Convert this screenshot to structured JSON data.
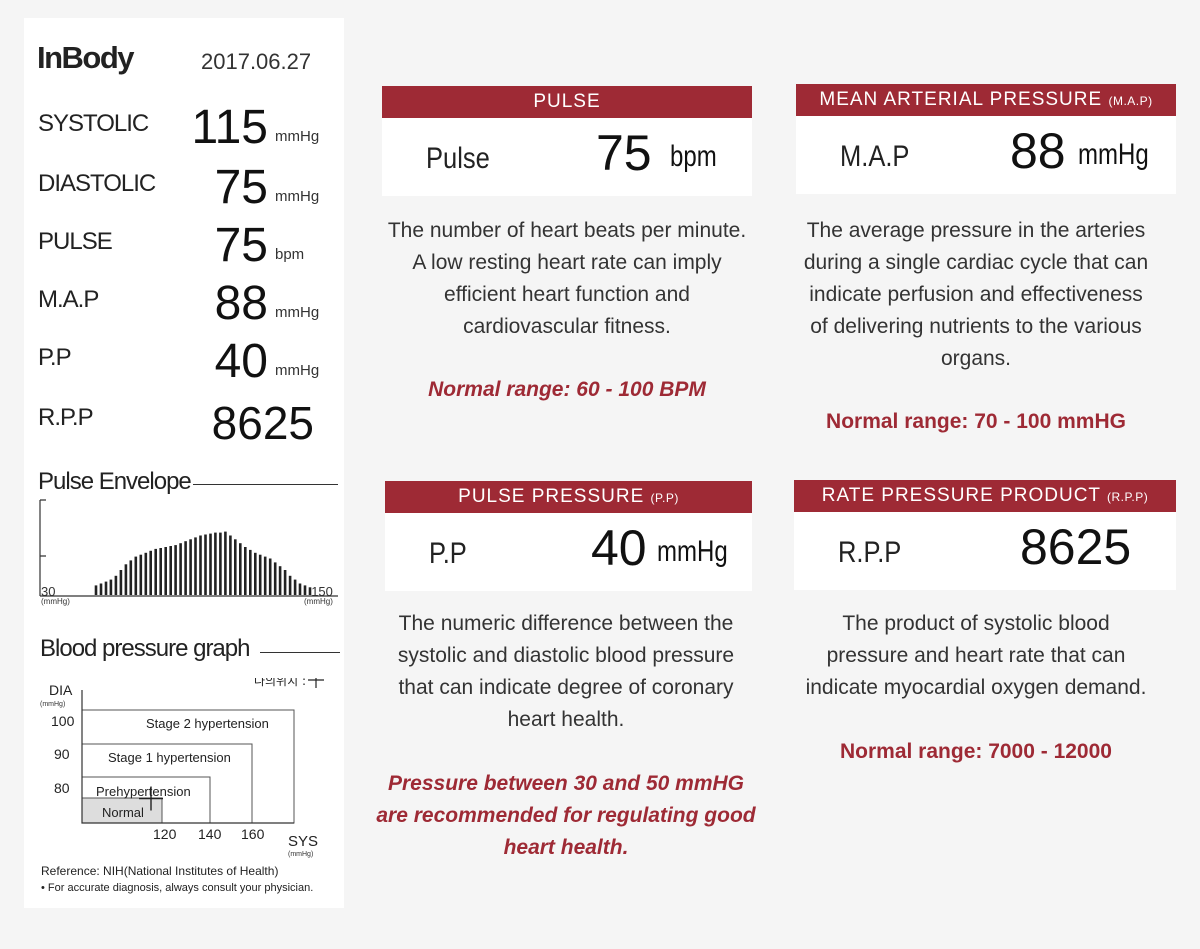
{
  "receipt": {
    "brand": "InBody",
    "date": "2017.06.27",
    "measures": [
      {
        "label": "SYSTOLIC",
        "value": "115",
        "unit": "mmHg"
      },
      {
        "label": "DIASTOLIC",
        "value": "75",
        "unit": "mmHg"
      },
      {
        "label": "PULSE",
        "value": "75",
        "unit": "bpm"
      },
      {
        "label": "M.A.P",
        "value": "88",
        "unit": "mmHg"
      },
      {
        "label": "P.P",
        "value": "40",
        "unit": "mmHg"
      },
      {
        "label": "R.P.P",
        "value": "8625",
        "unit": ""
      }
    ],
    "envelope": {
      "title": "Pulse Envelope",
      "x_min": "30",
      "x_max": "150",
      "x_unit": "(mmHg)",
      "bars": [
        0.1,
        0.12,
        0.14,
        0.16,
        0.2,
        0.26,
        0.32,
        0.36,
        0.4,
        0.42,
        0.44,
        0.46,
        0.48,
        0.49,
        0.5,
        0.51,
        0.52,
        0.54,
        0.56,
        0.58,
        0.6,
        0.62,
        0.63,
        0.64,
        0.65,
        0.65,
        0.66,
        0.62,
        0.58,
        0.54,
        0.5,
        0.47,
        0.44,
        0.42,
        0.4,
        0.38,
        0.34,
        0.3,
        0.26,
        0.2,
        0.16,
        0.12,
        0.1,
        0.08
      ]
    },
    "bp_graph": {
      "title": "Blood pressure graph",
      "marker_legend": "나의위치 :",
      "y_axis_label": "DIA",
      "y_axis_unit": "(mmHg)",
      "x_axis_label": "SYS",
      "x_axis_unit": "(mmHg)",
      "y_ticks": [
        "100",
        "90",
        "80"
      ],
      "x_ticks": [
        "120",
        "140",
        "160"
      ],
      "zones": [
        "Stage 2 hypertension",
        "Stage 1 hypertension",
        "Prehypertension",
        "Normal"
      ],
      "marker": {
        "sys": 115,
        "dia": 75
      }
    },
    "reference": "Reference: NIH(National Institutes of Health)",
    "footnote": "• For accurate diagnosis, always consult your physician."
  },
  "cards": {
    "pulse": {
      "title": "PULSE",
      "label": "Pulse",
      "value": "75",
      "unit": "bpm",
      "desc": [
        "The number of heart beats per minute.",
        "A low resting heart rate can imply",
        "efficient heart function and",
        "cardiovascular fitness."
      ],
      "normal": "Normal range: 60 - 100 BPM"
    },
    "map": {
      "title": "MEAN ARTERIAL PRESSURE",
      "title_abbr": "(M.A.P)",
      "label": "M.A.P",
      "value": "88",
      "unit": "mmHg",
      "desc": [
        "The average pressure in the arteries",
        "during a single cardiac cycle that can",
        "indicate perfusion and effectiveness",
        "of delivering nutrients to the various",
        "organs."
      ],
      "normal": "Normal range: 70 - 100 mmHG"
    },
    "pp": {
      "title": "PULSE PRESSURE",
      "title_abbr": "(P.P)",
      "label": "P.P",
      "value": "40",
      "unit": "mmHg",
      "desc": [
        "The numeric difference between the",
        "systolic and diastolic blood pressure",
        "that can indicate degree of coronary",
        "heart health."
      ],
      "normal": [
        "Pressure between 30 and 50 mmHG",
        "are recommended for regulating good",
        "heart health."
      ]
    },
    "rpp": {
      "title": "RATE PRESSURE PRODUCT",
      "title_abbr": "(R.P.P)",
      "label": "R.P.P",
      "value": "8625",
      "desc": [
        "The product of systolic blood",
        "pressure and heart rate that can",
        "indicate myocardial oxygen demand."
      ],
      "normal": "Normal range: 7000 - 12000"
    }
  },
  "colors": {
    "accent": "#9e2a35",
    "text": "#333333"
  }
}
